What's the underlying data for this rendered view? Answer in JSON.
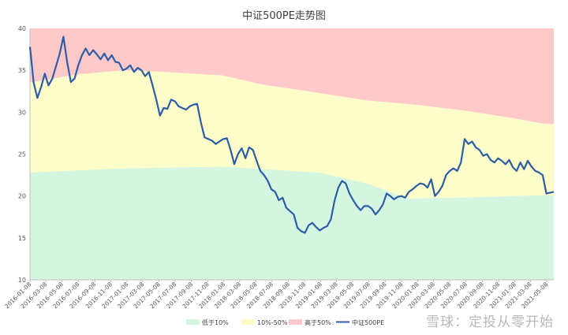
{
  "chart_data": {
    "type": "area",
    "title": "中证500PE走势图",
    "ylim": [
      10,
      40
    ],
    "yticks": [
      10,
      15,
      20,
      25,
      30,
      35,
      40
    ],
    "xticks": [
      "2016-01-08",
      "2016-03-08",
      "2016-05-08",
      "2016-07-08",
      "2016-09-08",
      "2016-11-08",
      "2017-01-08",
      "2017-03-08",
      "2017-05-08",
      "2017-07-08",
      "2017-09-08",
      "2017-11-08",
      "2018-01-08",
      "2018-03-08",
      "2018-05-08",
      "2018-07-08",
      "2018-09-08",
      "2018-11-08",
      "2019-01-08",
      "2019-03-08",
      "2019-05-08",
      "2019-07-08",
      "2019-09-08",
      "2019-11-08",
      "2020-01-08",
      "2020-03-08",
      "2020-05-08",
      "2020-07-08",
      "2020-09-08",
      "2020-11-08",
      "2021-01-08",
      "2021-03-08",
      "2021-05-08"
    ],
    "x_range": [
      "2016-01-08",
      "2021-06-04"
    ],
    "legend_position": "bottom",
    "bands": [
      {
        "name": "低于10%",
        "color": "#d4f5df",
        "x": [
          "2016-01",
          "2017-01",
          "2018-01",
          "2019-01",
          "2019-07",
          "2019-12",
          "2020-06",
          "2021-01",
          "2021-05"
        ],
        "y": [
          22.8,
          23.3,
          23.5,
          22.8,
          21.5,
          19.7,
          19.8,
          20.0,
          20.1
        ]
      },
      {
        "name": "10%-50%",
        "color": "#fdfdc9",
        "x": [
          "2016-01",
          "2016-07",
          "2017-01",
          "2017-06",
          "2018-01",
          "2018-06",
          "2019-01",
          "2019-07",
          "2020-01",
          "2020-07",
          "2021-01",
          "2021-05"
        ],
        "y": [
          33.5,
          34.5,
          35.0,
          34.8,
          34.4,
          33.3,
          32.3,
          31.4,
          30.9,
          30.2,
          29.3,
          28.6
        ]
      },
      {
        "name": "高于50%",
        "color": "#ffc9c9",
        "x": [
          "2016-01",
          "2021-05"
        ],
        "y": [
          40,
          40
        ]
      }
    ],
    "series": [
      {
        "name": "中证500PE",
        "color": "#2e5da8",
        "x": [
          "2016-01-08",
          "2016-01-22",
          "2016-02-05",
          "2016-02-19",
          "2016-03-04",
          "2016-03-18",
          "2016-04-01",
          "2016-04-15",
          "2016-04-29",
          "2016-05-13",
          "2016-05-27",
          "2016-06-10",
          "2016-06-24",
          "2016-07-08",
          "2016-07-22",
          "2016-08-05",
          "2016-08-19",
          "2016-09-02",
          "2016-09-16",
          "2016-09-30",
          "2016-10-14",
          "2016-10-28",
          "2016-11-11",
          "2016-11-25",
          "2016-12-09",
          "2016-12-23",
          "2017-01-06",
          "2017-01-20",
          "2017-02-03",
          "2017-02-17",
          "2017-03-03",
          "2017-03-17",
          "2017-03-31",
          "2017-04-14",
          "2017-04-28",
          "2017-05-12",
          "2017-05-26",
          "2017-06-09",
          "2017-06-23",
          "2017-07-07",
          "2017-07-21",
          "2017-08-04",
          "2017-08-18",
          "2017-09-01",
          "2017-09-15",
          "2017-09-29",
          "2017-10-13",
          "2017-10-27",
          "2017-11-10",
          "2017-11-24",
          "2017-12-08",
          "2017-12-22",
          "2018-01-05",
          "2018-01-19",
          "2018-02-02",
          "2018-02-16",
          "2018-03-02",
          "2018-03-16",
          "2018-03-30",
          "2018-04-13",
          "2018-04-27",
          "2018-05-11",
          "2018-05-25",
          "2018-06-08",
          "2018-06-22",
          "2018-07-06",
          "2018-07-20",
          "2018-08-03",
          "2018-08-17",
          "2018-08-31",
          "2018-09-14",
          "2018-09-28",
          "2018-10-12",
          "2018-10-26",
          "2018-11-09",
          "2018-11-23",
          "2018-12-07",
          "2018-12-21",
          "2019-01-04",
          "2019-01-18",
          "2019-02-01",
          "2019-02-15",
          "2019-03-01",
          "2019-03-15",
          "2019-03-29",
          "2019-04-12",
          "2019-04-26",
          "2019-05-10",
          "2019-05-24",
          "2019-06-07",
          "2019-06-21",
          "2019-07-05",
          "2019-07-19",
          "2019-08-02",
          "2019-08-16",
          "2019-08-30",
          "2019-09-13",
          "2019-09-27",
          "2019-10-11",
          "2019-10-25",
          "2019-11-08",
          "2019-11-22",
          "2019-12-06",
          "2019-12-20",
          "2020-01-03",
          "2020-01-17",
          "2020-01-31",
          "2020-02-14",
          "2020-02-28",
          "2020-03-13",
          "2020-03-27",
          "2020-04-10",
          "2020-04-24",
          "2020-05-08",
          "2020-05-22",
          "2020-06-05",
          "2020-06-19",
          "2020-07-03",
          "2020-07-17",
          "2020-07-31",
          "2020-08-14",
          "2020-08-28",
          "2020-09-11",
          "2020-09-25",
          "2020-10-09",
          "2020-10-23",
          "2020-11-06",
          "2020-11-20",
          "2020-12-04",
          "2020-12-18",
          "2021-01-01",
          "2021-01-15",
          "2021-01-29",
          "2021-02-12",
          "2021-02-26",
          "2021-03-12",
          "2021-03-26",
          "2021-04-09",
          "2021-04-23",
          "2021-05-07",
          "2021-05-21",
          "2021-06-04"
        ],
        "y": [
          37.8,
          33.5,
          31.7,
          33.0,
          34.6,
          33.2,
          34.0,
          35.5,
          37.0,
          39.0,
          36.0,
          33.6,
          34.0,
          35.6,
          36.8,
          37.6,
          36.8,
          37.4,
          36.9,
          36.3,
          37.0,
          36.2,
          36.8,
          36.0,
          35.9,
          35.0,
          35.2,
          35.6,
          34.8,
          35.3,
          35.0,
          34.3,
          34.8,
          33.2,
          31.5,
          29.6,
          30.5,
          30.4,
          31.5,
          31.3,
          30.7,
          30.5,
          30.3,
          30.7,
          30.9,
          31.0,
          28.8,
          27.0,
          26.8,
          26.6,
          26.2,
          26.5,
          26.8,
          26.9,
          25.5,
          23.8,
          25.0,
          25.7,
          24.5,
          25.8,
          25.5,
          24.2,
          23.0,
          22.5,
          21.8,
          20.8,
          20.5,
          19.5,
          19.8,
          18.6,
          18.2,
          17.8,
          16.2,
          15.8,
          15.6,
          16.5,
          16.8,
          16.3,
          15.9,
          16.2,
          16.4,
          17.2,
          19.5,
          21.0,
          21.8,
          21.5,
          20.3,
          19.5,
          18.8,
          18.3,
          18.8,
          18.8,
          18.5,
          17.8,
          18.3,
          19.0,
          20.3,
          20.0,
          19.6,
          19.9,
          20.0,
          19.8,
          20.5,
          20.8,
          21.2,
          21.5,
          21.4,
          21.0,
          22.0,
          20.0,
          20.5,
          21.2,
          22.5,
          23.0,
          23.3,
          23.0,
          24.0,
          26.8,
          26.2,
          26.5,
          25.8,
          25.5,
          24.8,
          25.0,
          24.3,
          24.0,
          24.5,
          24.2,
          23.8,
          24.3,
          23.4,
          23.0,
          24.0,
          23.2,
          24.2,
          23.5,
          23.0,
          22.8,
          22.5,
          20.3,
          20.4,
          20.5
        ]
      }
    ]
  },
  "watermark": "雪球：定投从零开始"
}
